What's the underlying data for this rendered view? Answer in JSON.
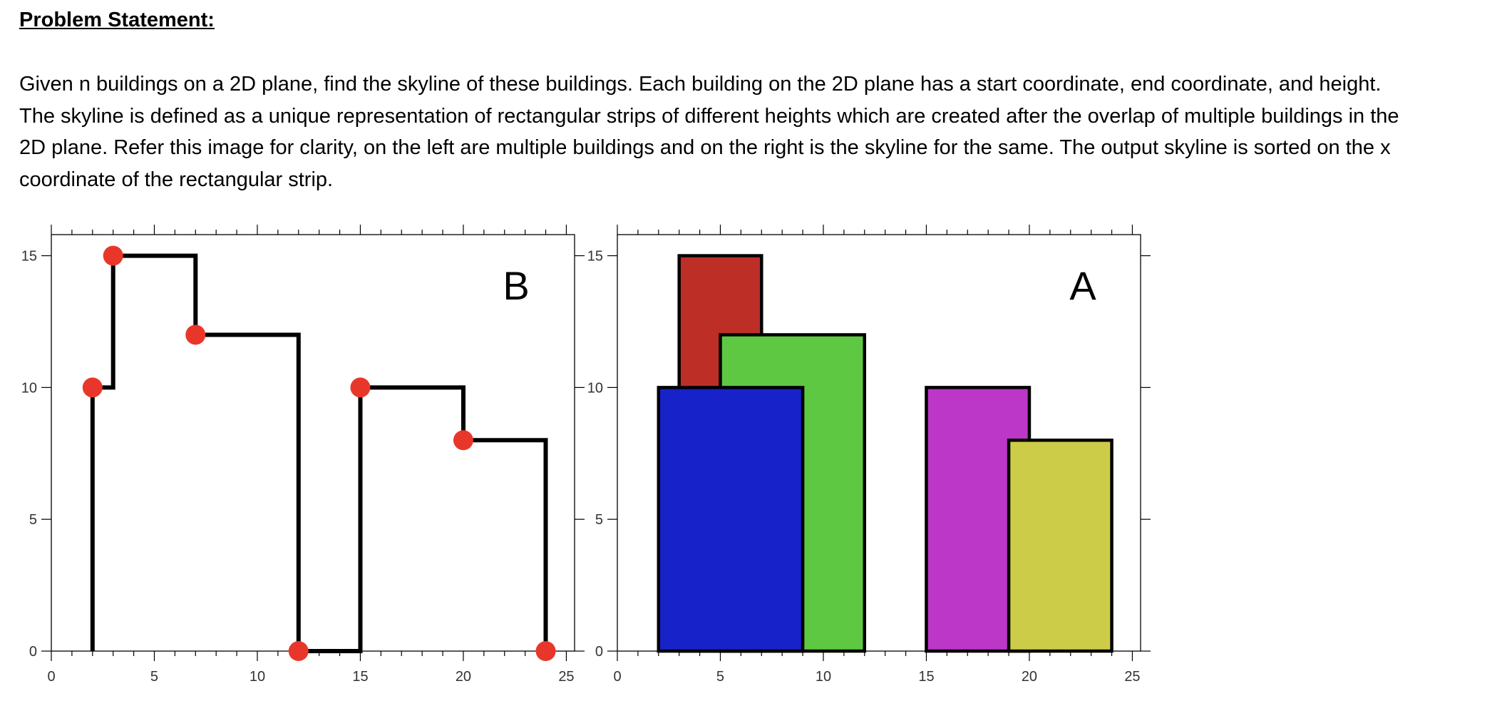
{
  "heading": "Problem Statement:",
  "paragraph_lines": [
    "Given n buildings on a 2D plane, find the skyline of these buildings. Each building on the 2D plane has a start coordinate, end coordinate, and height.",
    "The skyline is defined as a unique representation of rectangular strips of different heights which are created after the overlap of multiple buildings in the",
    "2D plane. Refer this image for clarity, on the left are multiple buildings and on the right is the skyline for the same. The output skyline is sorted on the x",
    "coordinate of the rectangular strip."
  ],
  "chart_data": [
    {
      "type": "line",
      "label": "B",
      "xlim": [
        0,
        25
      ],
      "ylim": [
        0,
        15
      ],
      "xticks": [
        "0",
        "5",
        "10",
        "15",
        "20",
        "25"
      ],
      "yticks": [
        "0",
        "5",
        "10",
        "15"
      ],
      "skyline_path": [
        [
          2,
          0
        ],
        [
          2,
          10
        ],
        [
          3,
          10
        ],
        [
          3,
          15
        ],
        [
          7,
          15
        ],
        [
          7,
          12
        ],
        [
          12,
          12
        ],
        [
          12,
          0
        ],
        [
          15,
          0
        ],
        [
          15,
          10
        ],
        [
          20,
          10
        ],
        [
          20,
          8
        ],
        [
          24,
          8
        ],
        [
          24,
          0
        ]
      ],
      "key_points": [
        [
          2,
          10
        ],
        [
          3,
          15
        ],
        [
          7,
          12
        ],
        [
          12,
          0
        ],
        [
          15,
          10
        ],
        [
          20,
          8
        ],
        [
          24,
          0
        ]
      ],
      "line_color": "#000000",
      "point_color": "#e8372a"
    },
    {
      "type": "bar",
      "label": "A",
      "xlim": [
        0,
        25
      ],
      "ylim": [
        0,
        15
      ],
      "xticks": [
        "0",
        "5",
        "10",
        "15",
        "20",
        "25"
      ],
      "yticks": [
        "0",
        "5",
        "10",
        "15"
      ],
      "buildings": [
        {
          "left": 3,
          "right": 7,
          "height": 15,
          "color": "#bd2e26"
        },
        {
          "left": 5,
          "right": 12,
          "height": 12,
          "color": "#5ec842"
        },
        {
          "left": 2,
          "right": 9,
          "height": 10,
          "color": "#1722c9"
        },
        {
          "left": 15,
          "right": 20,
          "height": 10,
          "color": "#bc36c7"
        },
        {
          "left": 19,
          "right": 24,
          "height": 8,
          "color": "#cdcc48"
        }
      ]
    }
  ]
}
